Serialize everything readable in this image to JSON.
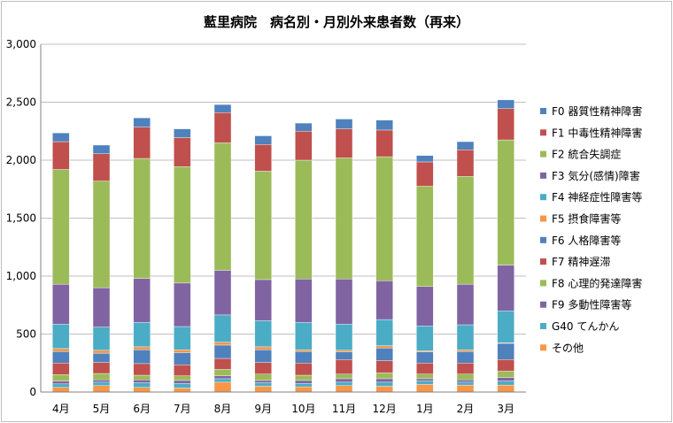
{
  "chart_data": {
    "type": "bar",
    "stacked": true,
    "title": "藍里病院　病名別・月別外来患者数（再来）",
    "xlabel": "",
    "ylabel": "",
    "ylim": [
      0,
      3000
    ],
    "yticks": [
      0,
      500,
      1000,
      1500,
      2000,
      2500,
      3000
    ],
    "ytick_labels": [
      "0",
      "500",
      "1,000",
      "1,500",
      "2,000",
      "2,500",
      "3,000"
    ],
    "grid": true,
    "legend_position": "right",
    "categories": [
      "4月",
      "5月",
      "6月",
      "7月",
      "8月",
      "9月",
      "10月",
      "11月",
      "12月",
      "1月",
      "2月",
      "3月"
    ],
    "series": [
      {
        "name": "その他",
        "color": "#f79646",
        "values": [
          40,
          55,
          40,
          35,
          85,
          50,
          45,
          55,
          50,
          65,
          60,
          60
        ]
      },
      {
        "name": "G40 てんかん",
        "color": "#4bacc6",
        "values": [
          30,
          30,
          40,
          40,
          30,
          30,
          30,
          30,
          35,
          30,
          25,
          35
        ]
      },
      {
        "name": "F9 多動性障害等",
        "color": "#8064a2",
        "values": [
          25,
          20,
          25,
          25,
          25,
          20,
          25,
          30,
          30,
          20,
          20,
          30
        ]
      },
      {
        "name": "F8 心理的発達障害",
        "color": "#9bbb59",
        "values": [
          55,
          55,
          40,
          40,
          55,
          55,
          45,
          40,
          50,
          40,
          50,
          55
        ]
      },
      {
        "name": "F7 精神遅滞",
        "color": "#c0504d",
        "values": [
          100,
          95,
          100,
          95,
          95,
          100,
          105,
          125,
          105,
          95,
          95,
          100
        ]
      },
      {
        "name": "F6 人格障害等",
        "color": "#4f81bd",
        "values": [
          100,
          80,
          120,
          105,
          115,
          110,
          100,
          65,
          110,
          95,
          100,
          140
        ]
      },
      {
        "name": "F5 摂食障害等",
        "color": "#f79646",
        "values": [
          25,
          25,
          25,
          25,
          25,
          25,
          15,
          15,
          20,
          10,
          15,
          5
        ]
      },
      {
        "name": "F4 神経症性障害等",
        "color": "#4bacc6",
        "values": [
          210,
          200,
          210,
          200,
          235,
          225,
          235,
          225,
          225,
          215,
          215,
          275
        ]
      },
      {
        "name": "F3 気分(感情)障害",
        "color": "#8064a2",
        "values": [
          345,
          340,
          380,
          375,
          385,
          355,
          375,
          390,
          335,
          340,
          350,
          395
        ]
      },
      {
        "name": "F2 統合失調症",
        "color": "#9bbb59",
        "values": [
          990,
          920,
          1035,
          1005,
          1100,
          935,
          1025,
          1045,
          1070,
          865,
          930,
          1080
        ]
      },
      {
        "name": "F1 中毒性精神障害",
        "color": "#c0504d",
        "values": [
          240,
          235,
          270,
          250,
          260,
          230,
          250,
          250,
          230,
          210,
          230,
          270
        ]
      },
      {
        "name": "F0 器質性精神障害",
        "color": "#4f81bd",
        "values": [
          75,
          75,
          80,
          75,
          70,
          75,
          70,
          85,
          85,
          55,
          70,
          75
        ]
      }
    ]
  }
}
